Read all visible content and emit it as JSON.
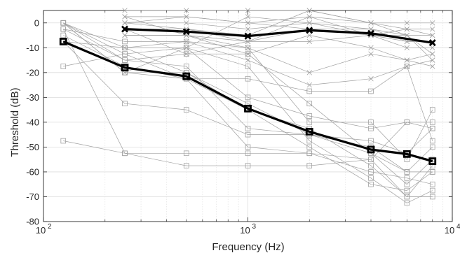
{
  "chart_data": {
    "type": "line",
    "title": "",
    "xlabel": "Frequency (Hz)",
    "ylabel": "Threshold (dB)",
    "x_scale": "log",
    "xlim": [
      100,
      10000
    ],
    "ylim": [
      -80,
      5
    ],
    "x_ticks": [
      {
        "value": 100,
        "base": "10",
        "exp": "2"
      },
      {
        "value": 1000,
        "base": "10",
        "exp": "3"
      },
      {
        "value": 10000,
        "base": "10",
        "exp": "4"
      }
    ],
    "y_ticks": [
      0,
      -10,
      -20,
      -30,
      -40,
      -50,
      -60,
      -70,
      -80
    ],
    "grid": true,
    "x": [
      125,
      250,
      500,
      1000,
      2000,
      4000,
      6000,
      8000
    ],
    "colors": {
      "individual": "#a0a0a0",
      "mean": "#000000"
    },
    "series": [
      {
        "marker": "square",
        "role": "individual",
        "values": [
          0,
          -10,
          -10,
          -30,
          -37.5,
          -42.5,
          -40,
          -42.5
        ]
      },
      {
        "marker": "square",
        "role": "individual",
        "values": [
          -17.5,
          -12.5,
          -22.5,
          -22.5,
          -27.5,
          -27.5,
          -17.5,
          -47.5
        ]
      },
      {
        "marker": "square",
        "role": "individual",
        "values": [
          -47.5,
          -52.5,
          -57.5,
          -57.5,
          -57.5,
          -55,
          -40,
          -40
        ]
      },
      {
        "marker": "square",
        "role": "individual",
        "values": [
          -7.5,
          -32.5,
          -35,
          -45,
          -45,
          -47.5,
          -52.5,
          -42.5
        ]
      },
      {
        "marker": "square",
        "role": "individual",
        "values": [
          -2.5,
          -52.5,
          -52.5,
          -52.5,
          -52.5,
          -60,
          -62.5,
          -65
        ]
      },
      {
        "marker": "square",
        "role": "individual",
        "values": [
          -2.5,
          -7.5,
          -7.5,
          -10,
          -40,
          -40,
          -55,
          -35
        ]
      },
      {
        "marker": "square",
        "role": "individual",
        "values": [
          0,
          -20,
          -20,
          -32.5,
          -45,
          -50,
          -60,
          -50
        ]
      },
      {
        "marker": "square",
        "role": "individual",
        "values": [
          -7.5,
          -10,
          -20,
          -35,
          -50,
          -65,
          -67.5,
          -60
        ]
      },
      {
        "marker": "square",
        "role": "individual",
        "values": [
          0,
          -12.5,
          -10,
          -17.5,
          -47.5,
          -62.5,
          -72.5,
          -67.5
        ]
      },
      {
        "marker": "square",
        "role": "individual",
        "values": [
          -5,
          -17.5,
          -22.5,
          -35,
          -42.5,
          -57.5,
          -70,
          -70
        ]
      },
      {
        "marker": "square",
        "role": "individual",
        "values": [
          -2.5,
          -15,
          -12.5,
          -12.5,
          -32.5,
          -52.5,
          -65,
          -55
        ]
      },
      {
        "marker": "square",
        "role": "individual",
        "values": [
          0,
          -20,
          -22.5,
          -50,
          -52.5,
          -55,
          -70,
          -57.5
        ]
      },
      {
        "marker": "square",
        "role": "individual",
        "values": [
          0,
          -15,
          -17.5,
          -42.5,
          -45,
          -52.5,
          -60,
          -60
        ]
      },
      {
        "marker": "cross",
        "role": "individual",
        "values": [
          null,
          5,
          5,
          5,
          5,
          0,
          -5,
          -12.5
        ]
      },
      {
        "marker": "cross",
        "role": "individual",
        "values": [
          null,
          2.5,
          2.5,
          0,
          2.5,
          -5,
          -10,
          -10
        ]
      },
      {
        "marker": "cross",
        "role": "individual",
        "values": [
          null,
          0,
          0,
          -2.5,
          0,
          -5,
          -2.5,
          -2.5
        ]
      },
      {
        "marker": "cross",
        "role": "individual",
        "values": [
          null,
          -2.5,
          -2.5,
          -5,
          5,
          0,
          0,
          0
        ]
      },
      {
        "marker": "cross",
        "role": "individual",
        "values": [
          null,
          -5,
          -5,
          -7.5,
          -7.5,
          -5,
          -5,
          -15
        ]
      },
      {
        "marker": "cross",
        "role": "individual",
        "values": [
          null,
          2.5,
          -5,
          -10,
          -20,
          -12.5,
          -15,
          -17.5
        ]
      },
      {
        "marker": "cross",
        "role": "individual",
        "values": [
          null,
          -10,
          -7.5,
          -15,
          -25,
          -22.5,
          -17.5,
          -15
        ]
      },
      {
        "marker": "cross",
        "role": "individual",
        "values": [
          null,
          -20,
          -10,
          2.5,
          0,
          -2.5,
          -7.5,
          -7.5
        ]
      },
      {
        "marker": "cross",
        "role": "individual",
        "values": [
          null,
          -2.5,
          -12.5,
          -7.5,
          2.5,
          0,
          -2.5,
          -5
        ]
      },
      {
        "marker": "cross",
        "role": "individual",
        "values": [
          null,
          0,
          2.5,
          0,
          -2.5,
          -2.5,
          -5,
          -5
        ]
      },
      {
        "marker": "cross",
        "role": "individual",
        "values": [
          null,
          -5,
          -5,
          -12.5,
          -5,
          -10,
          -15,
          -12.5
        ]
      },
      {
        "marker": "cross",
        "role": "individual",
        "values": [
          null,
          0,
          -2.5,
          -7.5,
          -2.5,
          -5,
          -7.5,
          -7.5
        ]
      },
      {
        "marker": "square",
        "role": "mean",
        "values": [
          -7.5,
          -18,
          -21.5,
          -34.5,
          -43.8,
          -51,
          -52.8,
          -55.7
        ]
      },
      {
        "marker": "cross",
        "role": "mean",
        "values": [
          null,
          -2.5,
          -3.5,
          -5.3,
          -3,
          -4.2,
          null,
          -8
        ]
      }
    ]
  }
}
